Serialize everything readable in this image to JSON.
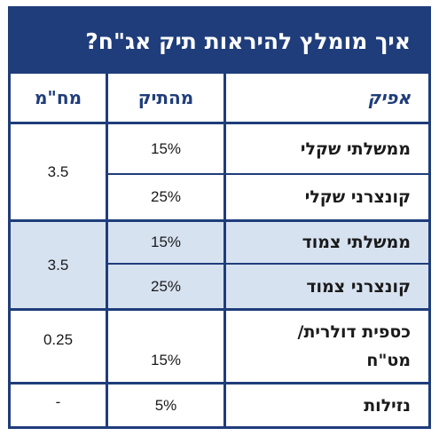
{
  "title": "איך מומלץ להיראות תיק אג\"ח?",
  "colors": {
    "header_bg": "#1f3d7a",
    "header_text": "#ffffff",
    "accent_text": "#1f3d7a",
    "shaded_row": "#d7e2f1"
  },
  "columns": {
    "afik": "אפיק",
    "mehatik": "מהתיק",
    "mahm": "מח\"מ"
  },
  "rows": [
    {
      "afik": "ממשלתי שקלי",
      "mehatik": "15%"
    },
    {
      "afik": "קונצרני שקלי",
      "mehatik": "25%"
    },
    {
      "afik": "ממשלתי צמוד",
      "mehatik": "15%"
    },
    {
      "afik": "קונצרני צמוד",
      "mehatik": "25%"
    },
    {
      "afik": "כספית דולרית/ מט\"ח",
      "mehatik": "15%"
    },
    {
      "afik": "נזילות",
      "mehatik": "5%"
    }
  ],
  "duration_groups": [
    {
      "value": "3.5"
    },
    {
      "value": "3.5"
    },
    {
      "value": "0.25"
    },
    {
      "value": "-"
    }
  ]
}
